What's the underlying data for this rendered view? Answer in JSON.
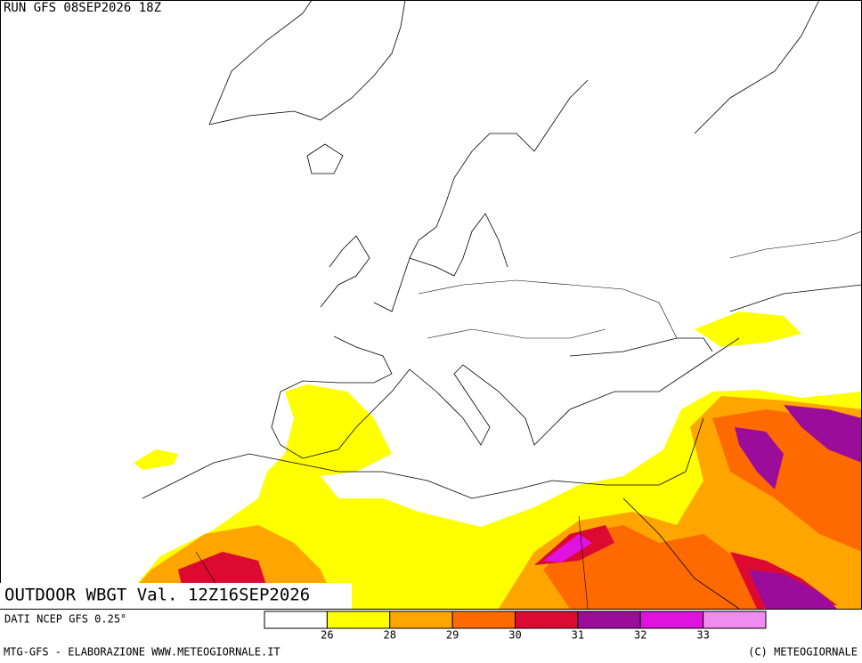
{
  "header": {
    "run": "RUN GFS 08SEP2026 18Z"
  },
  "map": {
    "title": "OUTDOOR WBGT Val. 12Z16SEP2026"
  },
  "legend": {
    "source": "DATI NCEP GFS 0.25°",
    "colors": [
      "#ffffff",
      "#ffff00",
      "#ffa500",
      "#ff6a00",
      "#dc0a30",
      "#9b0c9b",
      "#e012e0",
      "#f08cf0"
    ],
    "ticks": [
      26,
      28,
      29,
      30,
      31,
      32,
      33
    ]
  },
  "footer": {
    "left": "MTG-GFS - ELABORAZIONE WWW.METEOGIORNALE.IT",
    "right": "(C) METEOGIORNALE"
  }
}
